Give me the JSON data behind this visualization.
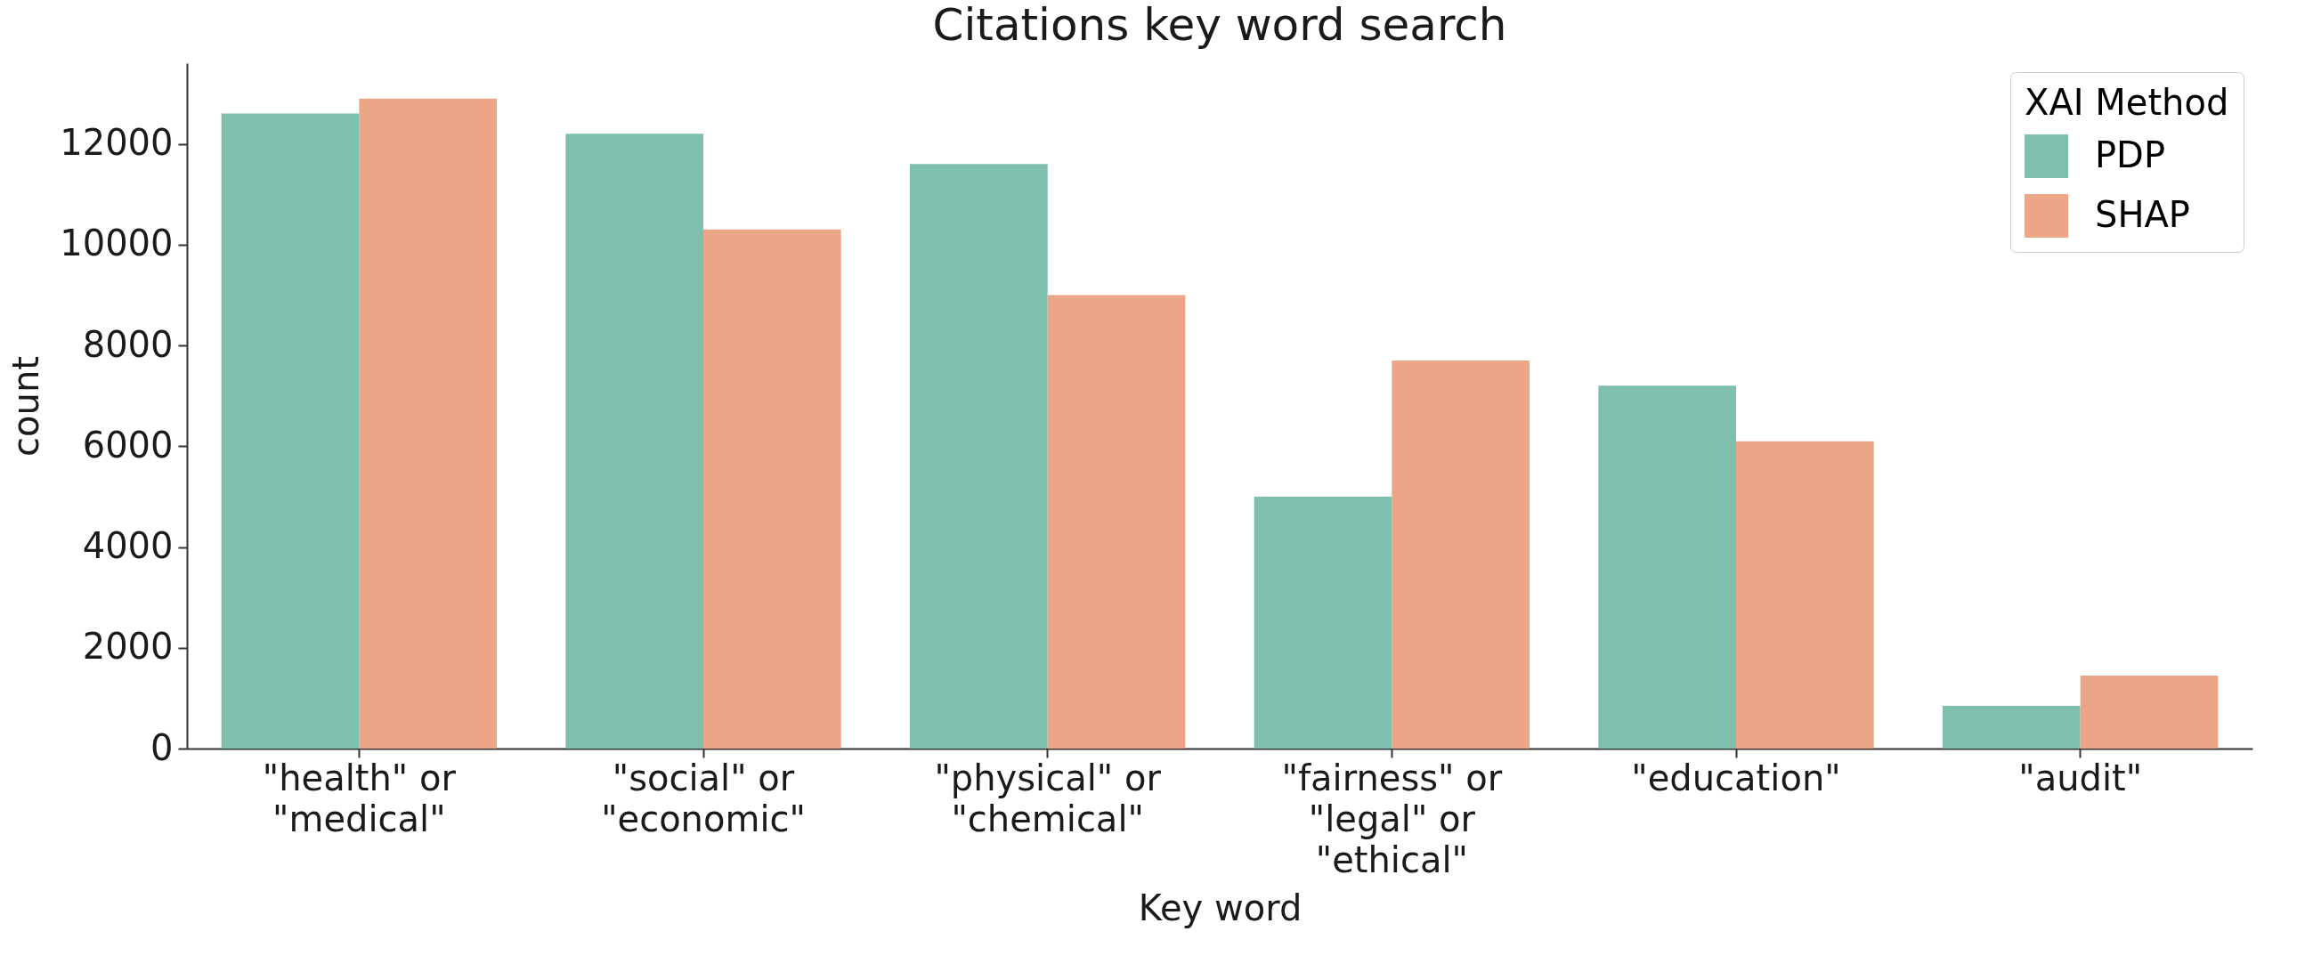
{
  "chart_data": {
    "type": "bar",
    "title": "Citations key word search",
    "xlabel": "Key word",
    "ylabel": "count",
    "legend_title": "XAI Method",
    "categories": [
      "\"health\" or\n\"medical\"",
      "\"social\" or\n\"economic\"",
      "\"physical\" or\n\"chemical\"",
      "\"fairness\" or\n\"legal\" or\n\"ethical\"",
      "\"education\"",
      "\"audit\""
    ],
    "series": [
      {
        "name": "PDP",
        "color": "#7fbfae",
        "values": [
          12600,
          12200,
          11600,
          5000,
          7200,
          850
        ]
      },
      {
        "name": "SHAP",
        "color": "#eba687",
        "values": [
          12900,
          10300,
          9000,
          7700,
          6100,
          1450
        ]
      }
    ],
    "ylim": [
      0,
      13600
    ],
    "yticks": [
      0,
      2000,
      4000,
      6000,
      8000,
      10000,
      12000
    ],
    "grid": false,
    "legend": "top right"
  }
}
